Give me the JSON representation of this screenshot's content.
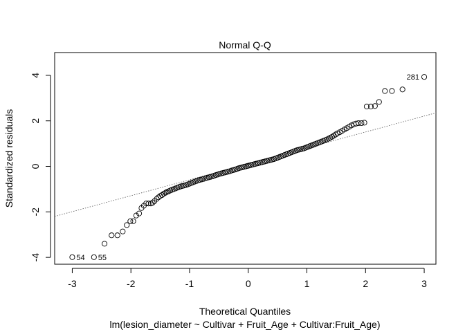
{
  "chart_data": {
    "type": "scatter",
    "title": "Normal Q-Q",
    "xlabel": "Theoretical Quantiles",
    "subtitle": "lm(lesion_diameter ~ Cultivar + Fruit_Age + Cultivar:Fruit_Age)",
    "ylabel": "Standardized residuals",
    "xlim": [
      -3.3,
      3.2
    ],
    "ylim": [
      -4.3,
      5.0
    ],
    "x_ticks": [
      -3,
      -2,
      -1,
      0,
      1,
      2,
      3
    ],
    "y_ticks": [
      -4,
      -2,
      0,
      2,
      4
    ],
    "x_tick_labels": [
      "-3",
      "-2",
      "-1",
      "0",
      "1",
      "2",
      "3"
    ],
    "y_tick_labels": [
      "-4",
      "-2",
      "0",
      "2",
      "4"
    ],
    "reference_line": {
      "slope": 0.7,
      "intercept": 0.11
    },
    "labeled_points": [
      {
        "label": "54",
        "x": -3.0,
        "y": -3.99
      },
      {
        "label": "55",
        "x": -2.63,
        "y": -3.99
      },
      {
        "label": "281",
        "x": 3.0,
        "y": 3.93
      }
    ],
    "points": [
      [
        -3.0,
        -3.99
      ],
      [
        -2.63,
        -3.99
      ],
      [
        -2.45,
        -3.4
      ],
      [
        -2.33,
        -3.03
      ],
      [
        -2.23,
        -3.03
      ],
      [
        -2.14,
        -2.86
      ],
      [
        -2.07,
        -2.58
      ],
      [
        -2.01,
        -2.41
      ],
      [
        -1.96,
        -2.41
      ],
      [
        -1.91,
        -2.16
      ],
      [
        -1.86,
        -2.07
      ],
      [
        -1.82,
        -1.83
      ],
      [
        -1.78,
        -1.73
      ],
      [
        -1.74,
        -1.63
      ],
      [
        -1.7,
        -1.63
      ],
      [
        -1.66,
        -1.63
      ],
      [
        -1.63,
        -1.6
      ],
      [
        -1.6,
        -1.53
      ],
      [
        -1.56,
        -1.43
      ],
      [
        -1.53,
        -1.36
      ],
      [
        -1.5,
        -1.3
      ],
      [
        -1.47,
        -1.26
      ],
      [
        -1.44,
        -1.2
      ],
      [
        -1.41,
        -1.16
      ],
      [
        -1.39,
        -1.13
      ],
      [
        -1.36,
        -1.1
      ],
      [
        -1.33,
        -1.06
      ],
      [
        -1.3,
        -1.03
      ],
      [
        -1.27,
        -1.0
      ],
      [
        -1.24,
        -0.97
      ],
      [
        -1.21,
        -0.94
      ],
      [
        -1.18,
        -0.91
      ],
      [
        -1.15,
        -0.88
      ],
      [
        -1.12,
        -0.86
      ],
      [
        -1.09,
        -0.84
      ],
      [
        -1.06,
        -0.82
      ],
      [
        -1.03,
        -0.79
      ],
      [
        -1.0,
        -0.76
      ],
      [
        -0.97,
        -0.73
      ],
      [
        -0.94,
        -0.7
      ],
      [
        -0.91,
        -0.67
      ],
      [
        -0.88,
        -0.64
      ],
      [
        -0.85,
        -0.61
      ],
      [
        -0.82,
        -0.59
      ],
      [
        -0.79,
        -0.57
      ],
      [
        -0.76,
        -0.55
      ],
      [
        -0.73,
        -0.52
      ],
      [
        -0.7,
        -0.5
      ],
      [
        -0.67,
        -0.48
      ],
      [
        -0.64,
        -0.46
      ],
      [
        -0.61,
        -0.44
      ],
      [
        -0.58,
        -0.41
      ],
      [
        -0.55,
        -0.38
      ],
      [
        -0.52,
        -0.36
      ],
      [
        -0.49,
        -0.33
      ],
      [
        -0.46,
        -0.31
      ],
      [
        -0.43,
        -0.29
      ],
      [
        -0.4,
        -0.27
      ],
      [
        -0.37,
        -0.25
      ],
      [
        -0.34,
        -0.23
      ],
      [
        -0.31,
        -0.21
      ],
      [
        -0.28,
        -0.18
      ],
      [
        -0.25,
        -0.16
      ],
      [
        -0.22,
        -0.14
      ],
      [
        -0.19,
        -0.11
      ],
      [
        -0.16,
        -0.08
      ],
      [
        -0.13,
        -0.06
      ],
      [
        -0.1,
        -0.04
      ],
      [
        -0.07,
        -0.02
      ],
      [
        -0.04,
        0.0
      ],
      [
        -0.01,
        0.02
      ],
      [
        0.02,
        0.04
      ],
      [
        0.05,
        0.06
      ],
      [
        0.08,
        0.08
      ],
      [
        0.11,
        0.1
      ],
      [
        0.14,
        0.12
      ],
      [
        0.17,
        0.14
      ],
      [
        0.2,
        0.16
      ],
      [
        0.23,
        0.18
      ],
      [
        0.26,
        0.2
      ],
      [
        0.29,
        0.22
      ],
      [
        0.32,
        0.24
      ],
      [
        0.35,
        0.26
      ],
      [
        0.38,
        0.28
      ],
      [
        0.41,
        0.3
      ],
      [
        0.44,
        0.32
      ],
      [
        0.47,
        0.35
      ],
      [
        0.5,
        0.38
      ],
      [
        0.53,
        0.41
      ],
      [
        0.56,
        0.44
      ],
      [
        0.59,
        0.47
      ],
      [
        0.62,
        0.5
      ],
      [
        0.65,
        0.53
      ],
      [
        0.68,
        0.56
      ],
      [
        0.71,
        0.59
      ],
      [
        0.74,
        0.62
      ],
      [
        0.77,
        0.65
      ],
      [
        0.8,
        0.68
      ],
      [
        0.83,
        0.71
      ],
      [
        0.86,
        0.73
      ],
      [
        0.89,
        0.75
      ],
      [
        0.92,
        0.77
      ],
      [
        0.95,
        0.79
      ],
      [
        0.98,
        0.82
      ],
      [
        1.01,
        0.85
      ],
      [
        1.04,
        0.88
      ],
      [
        1.07,
        0.91
      ],
      [
        1.1,
        0.94
      ],
      [
        1.13,
        0.97
      ],
      [
        1.16,
        1.0
      ],
      [
        1.19,
        1.03
      ],
      [
        1.22,
        1.06
      ],
      [
        1.25,
        1.09
      ],
      [
        1.28,
        1.12
      ],
      [
        1.31,
        1.15
      ],
      [
        1.34,
        1.18
      ],
      [
        1.37,
        1.22
      ],
      [
        1.4,
        1.26
      ],
      [
        1.43,
        1.3
      ],
      [
        1.46,
        1.35
      ],
      [
        1.49,
        1.4
      ],
      [
        1.52,
        1.45
      ],
      [
        1.56,
        1.5
      ],
      [
        1.6,
        1.56
      ],
      [
        1.64,
        1.62
      ],
      [
        1.68,
        1.68
      ],
      [
        1.72,
        1.74
      ],
      [
        1.76,
        1.8
      ],
      [
        1.8,
        1.85
      ],
      [
        1.84,
        1.88
      ],
      [
        1.88,
        1.9
      ],
      [
        1.93,
        1.9
      ],
      [
        1.98,
        1.92
      ],
      [
        2.02,
        2.63
      ],
      [
        2.09,
        2.63
      ],
      [
        2.16,
        2.65
      ],
      [
        2.23,
        2.83
      ],
      [
        2.33,
        3.31
      ],
      [
        2.45,
        3.31
      ],
      [
        2.63,
        3.38
      ],
      [
        3.0,
        3.93
      ]
    ]
  }
}
